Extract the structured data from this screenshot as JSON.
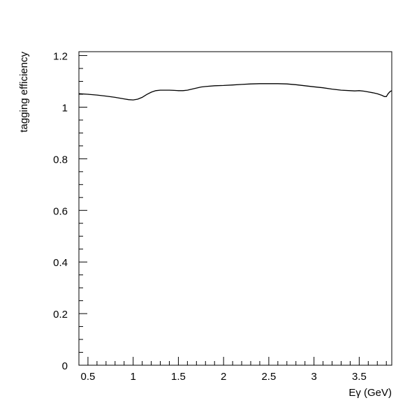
{
  "chart_data": {
    "type": "line",
    "xlabel": "Eγ (GeV)",
    "ylabel": "tagging efficiency",
    "xlim": [
      0.4,
      3.86
    ],
    "ylim": [
      0,
      1.215
    ],
    "x_ticks": [
      {
        "value": 0.5,
        "label": "0.5"
      },
      {
        "value": 1.0,
        "label": "1"
      },
      {
        "value": 1.5,
        "label": "1.5"
      },
      {
        "value": 2.0,
        "label": "2"
      },
      {
        "value": 2.5,
        "label": "2.5"
      },
      {
        "value": 3.0,
        "label": "3"
      },
      {
        "value": 3.5,
        "label": "3.5"
      }
    ],
    "y_ticks": [
      {
        "value": 0,
        "label": "0"
      },
      {
        "value": 0.2,
        "label": "0.2"
      },
      {
        "value": 0.4,
        "label": "0.4"
      },
      {
        "value": 0.6,
        "label": "0.6"
      },
      {
        "value": 0.8,
        "label": "0.8"
      },
      {
        "value": 1.0,
        "label": "1"
      },
      {
        "value": 1.2,
        "label": "1.2"
      }
    ],
    "grid": false,
    "legend": "none",
    "line_color": "#000000",
    "series": [
      {
        "x": [
          0.4,
          0.5,
          0.6,
          0.7,
          0.8,
          0.9,
          0.95,
          1.0,
          1.05,
          1.1,
          1.15,
          1.2,
          1.25,
          1.3,
          1.35,
          1.4,
          1.45,
          1.5,
          1.55,
          1.6,
          1.65,
          1.7,
          1.75,
          1.8,
          1.9,
          2.0,
          2.1,
          2.2,
          2.3,
          2.4,
          2.5,
          2.6,
          2.7,
          2.8,
          2.9,
          3.0,
          3.1,
          3.2,
          3.3,
          3.4,
          3.45,
          3.5,
          3.55,
          3.6,
          3.65,
          3.7,
          3.75,
          3.78,
          3.8,
          3.82,
          3.84,
          3.86
        ],
        "y": [
          1.052,
          1.05,
          1.047,
          1.043,
          1.038,
          1.032,
          1.029,
          1.028,
          1.031,
          1.038,
          1.049,
          1.058,
          1.064,
          1.066,
          1.066,
          1.066,
          1.065,
          1.064,
          1.064,
          1.066,
          1.07,
          1.074,
          1.078,
          1.08,
          1.083,
          1.084,
          1.086,
          1.088,
          1.09,
          1.091,
          1.091,
          1.091,
          1.09,
          1.087,
          1.083,
          1.079,
          1.075,
          1.07,
          1.066,
          1.064,
          1.063,
          1.064,
          1.062,
          1.059,
          1.056,
          1.052,
          1.046,
          1.041,
          1.041,
          1.052,
          1.06,
          1.064
        ]
      }
    ]
  }
}
